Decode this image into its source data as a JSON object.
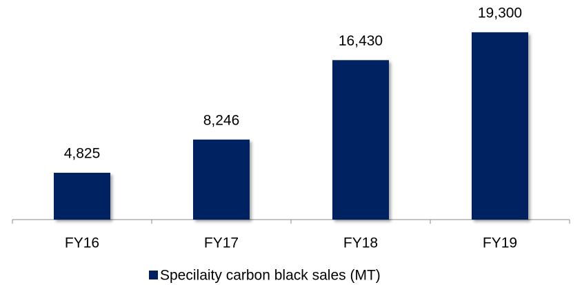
{
  "chart_data": {
    "type": "bar",
    "categories": [
      "FY16",
      "FY17",
      "FY18",
      "FY19"
    ],
    "series": [
      {
        "name": "Specilaity carbon black sales (MT)",
        "color": "#002060",
        "values": [
          4825,
          8246,
          16430,
          19300
        ],
        "value_labels": [
          "4,825",
          "8,246",
          "16,430",
          "19,300"
        ]
      }
    ],
    "ylim": [
      0,
      20000
    ]
  }
}
